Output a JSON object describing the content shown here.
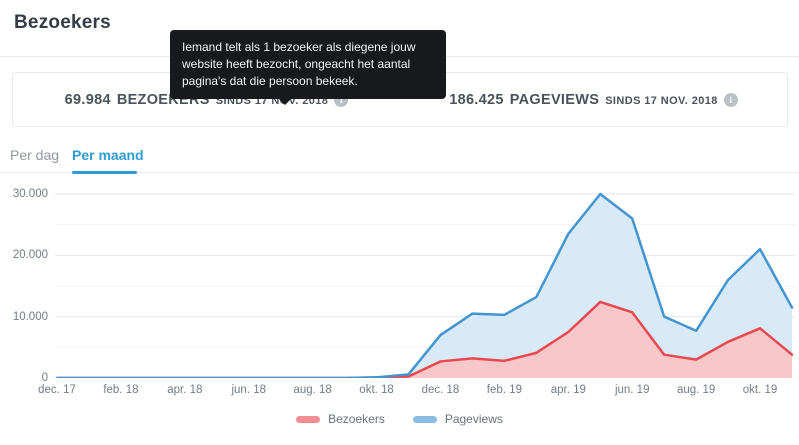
{
  "page": {
    "title": "Bezoekers"
  },
  "tooltip": {
    "text": "Iemand telt als 1 bezoeker als diegene jouw website heeft bezocht, ongeacht het aantal pagina's dat die persoon bekeek."
  },
  "stats": [
    {
      "value": "69.984",
      "label": "BEZOEKERS",
      "since": "SINDS 17 NOV. 2018",
      "info_icon": "info-icon"
    },
    {
      "value": "186.425",
      "label": "PAGEVIEWS",
      "since": "SINDS 17 NOV. 2018",
      "info_icon": "info-icon"
    }
  ],
  "tabs": [
    {
      "label": "Per dag",
      "active": false
    },
    {
      "label": "Per maand",
      "active": true
    }
  ],
  "accent_color": "#2e9dd6",
  "chart_data": {
    "type": "area",
    "title": "",
    "xlabel": "",
    "ylabel": "",
    "grid": true,
    "legend_position": "bottom",
    "ylim": [
      0,
      30000
    ],
    "categories": [
      "dec. 17",
      "jan. 18",
      "feb. 18",
      "mrt. 18",
      "apr. 18",
      "mei 18",
      "jun. 18",
      "jul. 18",
      "aug. 18",
      "sep. 18",
      "okt. 18",
      "nov. 18",
      "dec. 18",
      "jan. 19",
      "feb. 19",
      "mrt. 19",
      "apr. 19",
      "mei 19",
      "jun. 19",
      "jul. 19",
      "aug. 19",
      "sep. 19",
      "okt. 19",
      "nov. 19"
    ],
    "x_tick_labels": [
      "dec. 17",
      "feb. 18",
      "apr. 18",
      "jun. 18",
      "aug. 18",
      "okt. 18",
      "dec. 18",
      "feb. 19",
      "apr. 19",
      "jun. 19",
      "aug. 19",
      "okt. 19"
    ],
    "y_tick_labels": [
      {
        "value": 0,
        "label": "0"
      },
      {
        "value": 10000,
        "label": "10.000"
      },
      {
        "value": 20000,
        "label": "20.000"
      },
      {
        "value": 30000,
        "label": "30.000"
      }
    ],
    "y_minor_ticks": [
      5000,
      15000,
      25000
    ],
    "series": [
      {
        "name": "Bezoekers",
        "color": "#e8494e",
        "fill": "#f7c7c9",
        "values": [
          0,
          0,
          0,
          0,
          0,
          0,
          0,
          0,
          0,
          0,
          100,
          250,
          2700,
          3200,
          2800,
          4100,
          7500,
          12400,
          10700,
          3800,
          3000,
          5900,
          8100,
          3800
        ]
      },
      {
        "name": "Pageviews",
        "color": "#4395d2",
        "fill": "#d8e9f7",
        "values": [
          0,
          0,
          0,
          0,
          0,
          0,
          0,
          0,
          0,
          0,
          100,
          600,
          7000,
          10500,
          10300,
          13200,
          23500,
          30000,
          26000,
          10000,
          7700,
          16000,
          21000,
          11500
        ]
      }
    ]
  }
}
